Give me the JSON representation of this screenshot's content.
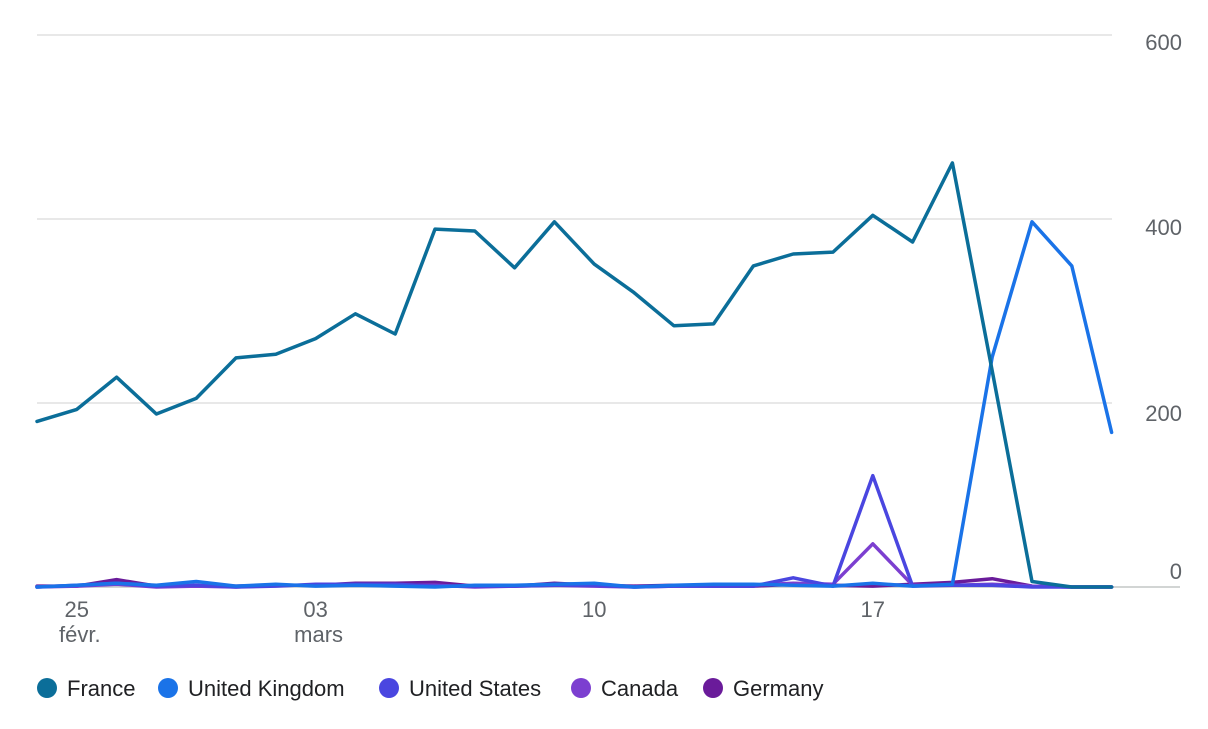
{
  "chart_data": {
    "type": "line",
    "x_ticks": [
      {
        "index": 1,
        "label": "25",
        "sublabel": "févr."
      },
      {
        "index": 7,
        "label": "03",
        "sublabel": "mars"
      },
      {
        "index": 14,
        "label": "10",
        "sublabel": ""
      },
      {
        "index": 21,
        "label": "17",
        "sublabel": ""
      }
    ],
    "y_ticks": [
      0,
      200,
      400,
      600
    ],
    "ylim": [
      0,
      600
    ],
    "grid": true,
    "y_axis_position": "right",
    "legend_position": "bottom-left",
    "x_count": 28,
    "series": [
      {
        "name": "France",
        "color": "#0b6e99",
        "values": [
          180,
          193,
          228,
          188,
          205,
          249,
          253,
          270,
          297,
          275,
          389,
          387,
          347,
          397,
          351,
          320,
          284,
          286,
          349,
          362,
          364,
          404,
          375,
          461,
          235,
          6,
          0,
          0
        ]
      },
      {
        "name": "United Kingdom",
        "color": "#1a73e8",
        "values": [
          0,
          2,
          4,
          2,
          6,
          1,
          3,
          1,
          2,
          1,
          0,
          2,
          2,
          3,
          4,
          0,
          2,
          3,
          3,
          2,
          1,
          4,
          1,
          3,
          250,
          397,
          349,
          168
        ]
      },
      {
        "name": "United States",
        "color": "#4a46e0",
        "values": [
          0,
          2,
          4,
          1,
          2,
          0,
          1,
          3,
          3,
          3,
          1,
          1,
          1,
          2,
          2,
          0,
          1,
          1,
          1,
          10,
          1,
          121,
          1,
          2,
          2,
          0,
          0,
          0
        ]
      },
      {
        "name": "Canada",
        "color": "#7c3fd0",
        "values": [
          0,
          1,
          3,
          0,
          1,
          0,
          2,
          2,
          3,
          2,
          2,
          0,
          1,
          2,
          1,
          0,
          1,
          1,
          2,
          4,
          3,
          47,
          2,
          2,
          3,
          1,
          0,
          0
        ]
      },
      {
        "name": "Germany",
        "color": "#6a1b9a",
        "values": [
          1,
          1,
          8,
          1,
          1,
          1,
          2,
          2,
          4,
          4,
          5,
          1,
          1,
          4,
          2,
          1,
          2,
          1,
          1,
          3,
          2,
          1,
          3,
          5,
          9,
          1,
          0,
          0
        ]
      }
    ]
  }
}
